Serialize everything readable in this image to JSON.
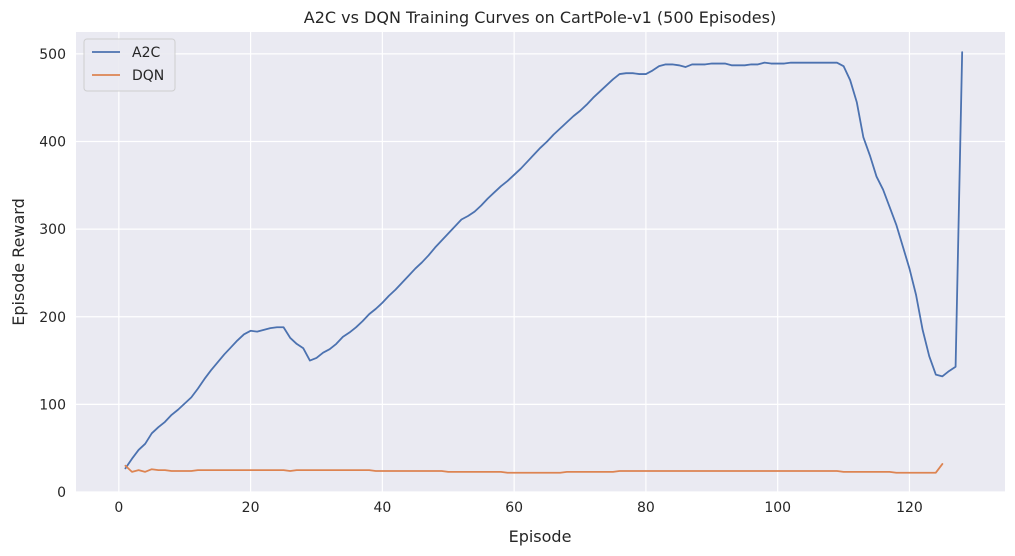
{
  "chart_data": {
    "type": "line",
    "title": "A2C vs DQN Training Curves on CartPole-v1 (500 Episodes)",
    "xlabel": "Episode",
    "ylabel": "Episode Reward",
    "xlim": [
      -6.5,
      134.5
    ],
    "ylim": [
      0,
      525
    ],
    "xticks": [
      0,
      20,
      40,
      60,
      80,
      100,
      120
    ],
    "yticks": [
      0,
      100,
      200,
      300,
      400,
      500
    ],
    "grid": true,
    "legend_position": "top-left",
    "colors": {
      "background": "#eaeaf2",
      "grid": "#ffffff",
      "A2C": "#4c72b0",
      "DQN": "#dd8452"
    },
    "series": [
      {
        "name": "A2C",
        "x": [
          1,
          2,
          3,
          4,
          5,
          6,
          7,
          8,
          9,
          10,
          11,
          12,
          13,
          14,
          15,
          16,
          17,
          18,
          19,
          20,
          21,
          22,
          23,
          24,
          25,
          26,
          27,
          28,
          29,
          30,
          31,
          32,
          33,
          34,
          35,
          36,
          37,
          38,
          39,
          40,
          41,
          42,
          43,
          44,
          45,
          46,
          47,
          48,
          49,
          50,
          51,
          52,
          53,
          54,
          55,
          56,
          57,
          58,
          59,
          60,
          61,
          62,
          63,
          64,
          65,
          66,
          67,
          68,
          69,
          70,
          71,
          72,
          73,
          74,
          75,
          76,
          77,
          78,
          79,
          80,
          81,
          82,
          83,
          84,
          85,
          86,
          87,
          88,
          89,
          90,
          91,
          92,
          93,
          94,
          95,
          96,
          97,
          98,
          99,
          100,
          101,
          102,
          103,
          104,
          105,
          106,
          107,
          108,
          109,
          110,
          111,
          112,
          113,
          114,
          115,
          116,
          117,
          118,
          119,
          120,
          121,
          122,
          123,
          124,
          125,
          126,
          127,
          128
        ],
        "values": [
          27,
          38,
          48,
          55,
          67,
          74,
          80,
          88,
          94,
          101,
          108,
          118,
          129,
          139,
          148,
          157,
          165,
          173,
          180,
          184,
          183,
          185,
          187,
          188,
          188,
          176,
          169,
          164,
          150,
          153,
          159,
          163,
          169,
          177,
          182,
          188,
          195,
          203,
          209,
          216,
          224,
          231,
          239,
          247,
          255,
          262,
          270,
          279,
          287,
          295,
          303,
          311,
          315,
          320,
          327,
          335,
          342,
          349,
          355,
          362,
          369,
          377,
          385,
          393,
          400,
          408,
          415,
          422,
          429,
          435,
          442,
          450,
          457,
          464,
          471,
          477,
          478,
          478,
          477,
          477,
          481,
          486,
          488,
          488,
          487,
          485,
          488,
          488,
          488,
          489,
          489,
          489,
          487,
          487,
          487,
          488,
          488,
          490,
          489,
          489,
          489,
          490,
          490,
          490,
          490,
          490,
          490,
          490,
          490,
          486,
          470,
          445,
          405,
          384,
          360,
          345,
          325,
          305,
          280,
          255,
          225,
          185,
          155,
          134,
          132,
          138,
          143,
          502
        ]
      },
      {
        "name": "DQN",
        "x": [
          1,
          2,
          3,
          4,
          5,
          6,
          7,
          8,
          9,
          10,
          11,
          12,
          13,
          14,
          15,
          16,
          17,
          18,
          19,
          20,
          21,
          22,
          23,
          24,
          25,
          26,
          27,
          28,
          29,
          30,
          31,
          32,
          33,
          34,
          35,
          36,
          37,
          38,
          39,
          40,
          41,
          42,
          43,
          44,
          45,
          46,
          47,
          48,
          49,
          50,
          51,
          52,
          53,
          54,
          55,
          56,
          57,
          58,
          59,
          60,
          61,
          62,
          63,
          64,
          65,
          66,
          67,
          68,
          69,
          70,
          71,
          72,
          73,
          74,
          75,
          76,
          77,
          78,
          79,
          80,
          81,
          82,
          83,
          84,
          85,
          86,
          87,
          88,
          89,
          90,
          91,
          92,
          93,
          94,
          95,
          96,
          97,
          98,
          99,
          100,
          101,
          102,
          103,
          104,
          105,
          106,
          107,
          108,
          109,
          110,
          111,
          112,
          113,
          114,
          115,
          116,
          117,
          118,
          119,
          120,
          121,
          122,
          123,
          124,
          125
        ],
        "values": [
          30,
          23,
          25,
          23,
          26,
          25,
          25,
          24,
          24,
          24,
          24,
          25,
          25,
          25,
          25,
          25,
          25,
          25,
          25,
          25,
          25,
          25,
          25,
          25,
          25,
          24,
          25,
          25,
          25,
          25,
          25,
          25,
          25,
          25,
          25,
          25,
          25,
          25,
          24,
          24,
          24,
          24,
          24,
          24,
          24,
          24,
          24,
          24,
          24,
          23,
          23,
          23,
          23,
          23,
          23,
          23,
          23,
          23,
          22,
          22,
          22,
          22,
          22,
          22,
          22,
          22,
          22,
          23,
          23,
          23,
          23,
          23,
          23,
          23,
          23,
          24,
          24,
          24,
          24,
          24,
          24,
          24,
          24,
          24,
          24,
          24,
          24,
          24,
          24,
          24,
          24,
          24,
          24,
          24,
          24,
          24,
          24,
          24,
          24,
          24,
          24,
          24,
          24,
          24,
          24,
          24,
          24,
          24,
          24,
          23,
          23,
          23,
          23,
          23,
          23,
          23,
          23,
          22,
          22,
          22,
          22,
          22,
          22,
          22,
          32
        ]
      }
    ]
  }
}
